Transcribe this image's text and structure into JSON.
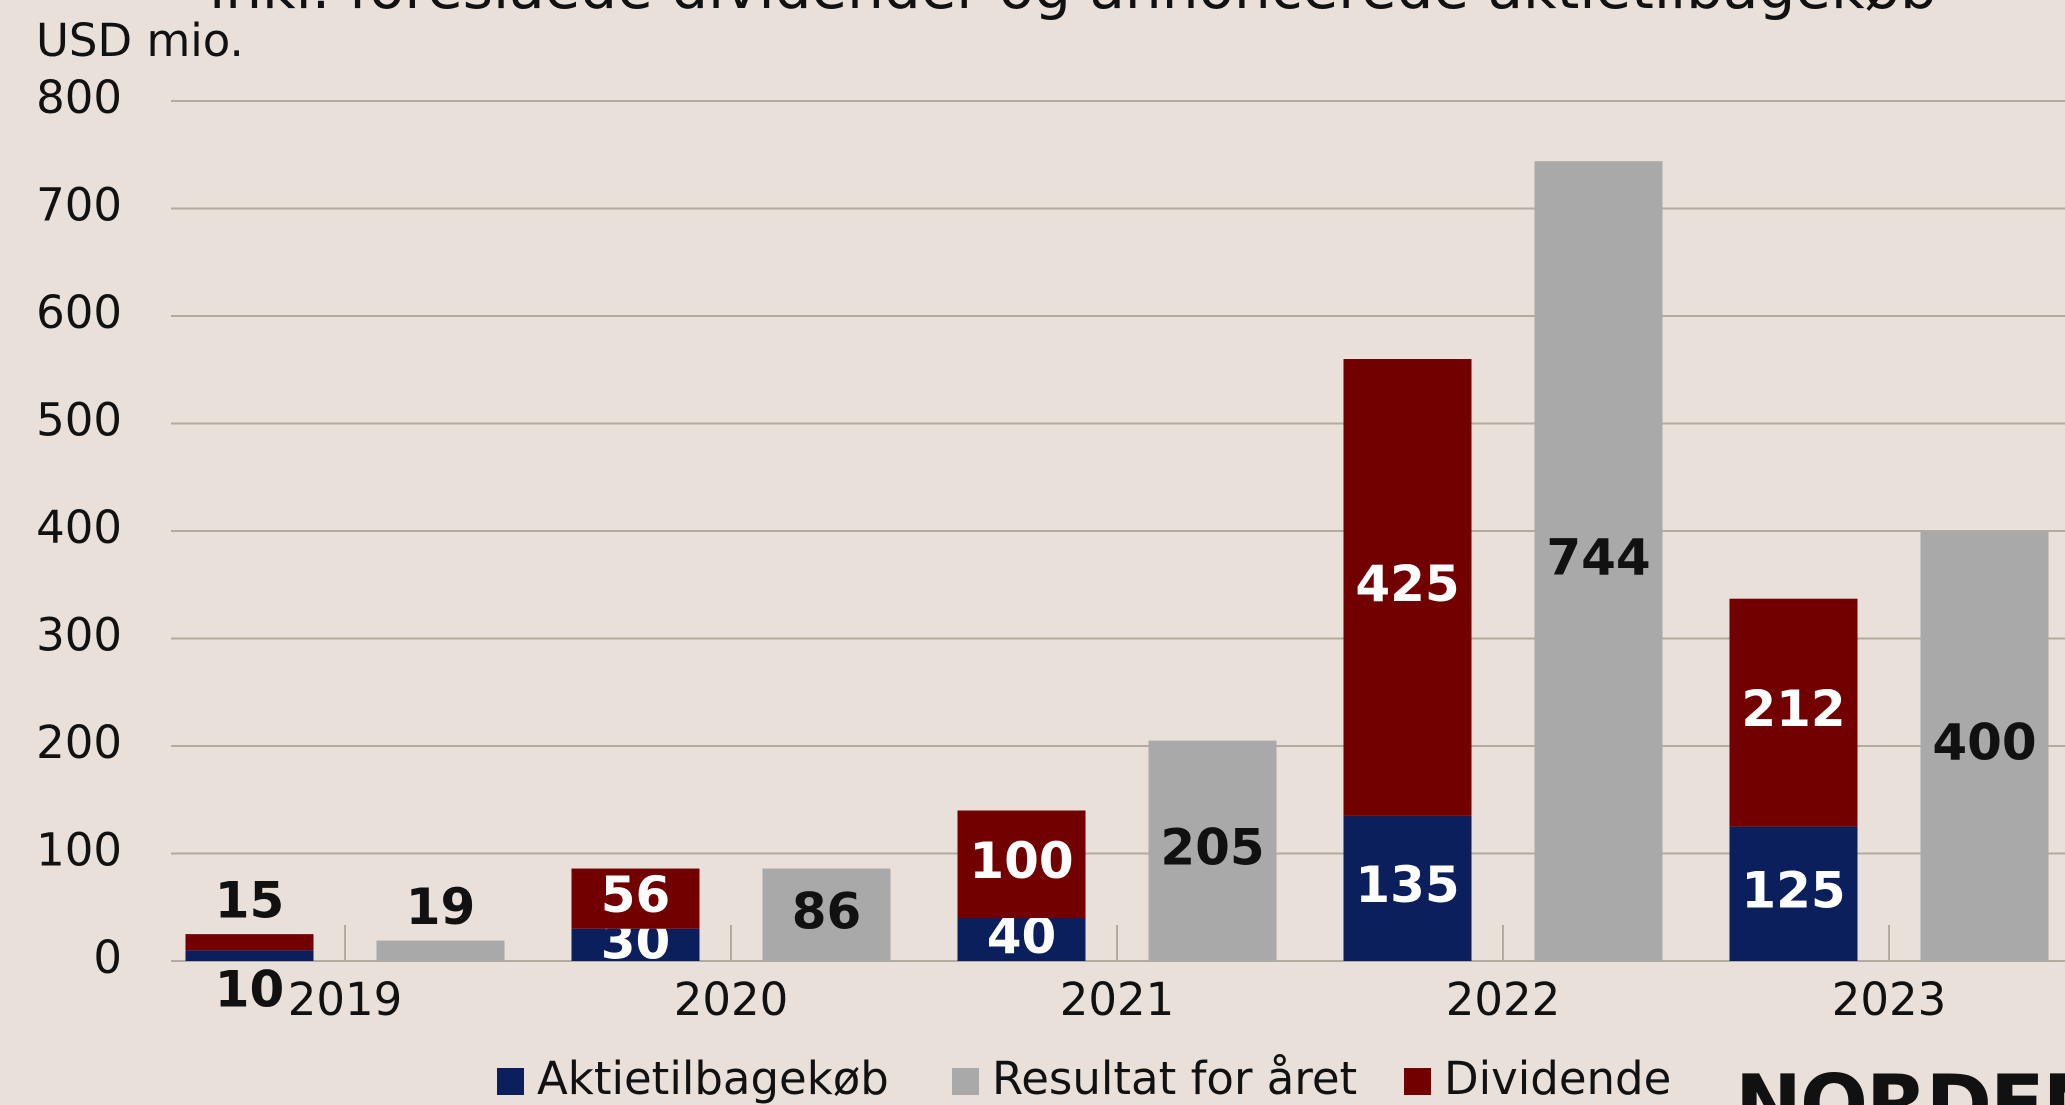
{
  "chart_data": {
    "type": "bar",
    "title": "inkl. foreslåede dividender og annoncerede aktietilbagekøb",
    "y_label": "USD mio.",
    "categories": [
      "2019",
      "2020",
      "2021",
      "2022",
      "2023"
    ],
    "series": [
      {
        "name": "Aktietilbagekøb",
        "color": "#0b1f5c",
        "stack": "a",
        "values": [
          10,
          30,
          40,
          135,
          125
        ]
      },
      {
        "name": "Resultat for året",
        "color": "#a9a9a9",
        "stack": "b",
        "values": [
          19,
          86,
          205,
          744,
          400
        ]
      },
      {
        "name": "Dividende",
        "color": "#720000",
        "stack": "a",
        "values": [
          15,
          56,
          100,
          425,
          212
        ]
      }
    ],
    "ylim": [
      0,
      800
    ],
    "yticks": [
      0,
      100,
      200,
      300,
      400,
      500,
      600,
      700,
      800
    ],
    "grid": true,
    "legend": "bottom",
    "logo": "NORDEN"
  }
}
